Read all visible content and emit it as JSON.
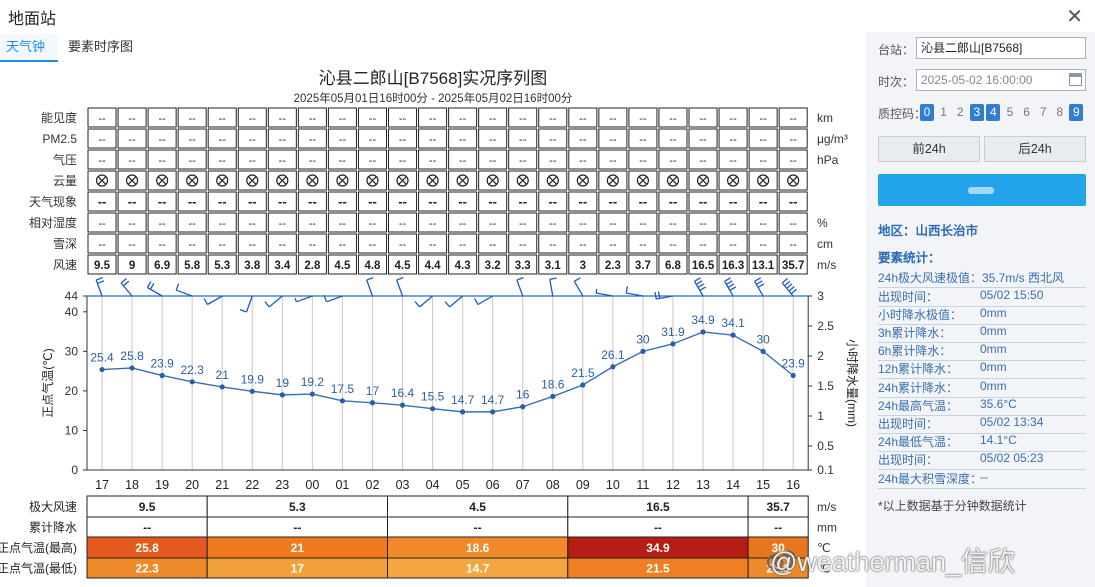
{
  "window": {
    "title": "地面站"
  },
  "tabs": [
    {
      "label": "天气钟"
    },
    {
      "label": "要素时序图"
    }
  ],
  "panel": {
    "station_label": "台站：",
    "station_value": "沁县二郎山[B7568]",
    "time_label": "时次：",
    "time_value": "2025-05-02 16:00:00",
    "qc_label": "质控码：",
    "qc_codes": [
      {
        "code": "0",
        "on": true
      },
      {
        "code": "1",
        "on": false
      },
      {
        "code": "2",
        "on": false
      },
      {
        "code": "3",
        "on": true
      },
      {
        "code": "4",
        "on": true
      },
      {
        "code": "5",
        "on": false
      },
      {
        "code": "6",
        "on": false
      },
      {
        "code": "7",
        "on": false
      },
      {
        "code": "8",
        "on": false
      },
      {
        "code": "9",
        "on": true
      }
    ],
    "prev_label": "前24h",
    "next_label": "后24h",
    "region": "地区：山西长治市",
    "stats_title": "要素统计：",
    "stats": [
      {
        "k": "24h极大风速极值：",
        "v": "35.7m/s 西北风",
        "wide": true
      },
      {
        "k": "出现时间：",
        "v": "05/02 15:50"
      },
      {
        "k": "小时降水极值：",
        "v": "0mm"
      },
      {
        "k": "3h累计降水：",
        "v": "0mm"
      },
      {
        "k": "6h累计降水：",
        "v": "0mm"
      },
      {
        "k": "12h累计降水：",
        "v": "0mm"
      },
      {
        "k": "24h累计降水：",
        "v": "0mm"
      },
      {
        "k": "24h最高气温：",
        "v": "35.6°C"
      },
      {
        "k": "出现时间：",
        "v": "05/02 13:34"
      },
      {
        "k": "24h最低气温：",
        "v": "14.1°C"
      },
      {
        "k": "出现时间：",
        "v": "05/02 05:23"
      },
      {
        "k": "24h最大积雪深度：",
        "v": "--"
      }
    ],
    "footnote": "*以上数据基于分钟数据统计"
  },
  "watermark": "@weatherman_信欣",
  "chart_data": {
    "type": "line",
    "title": "沁县二郎山[B7568]实况序列图",
    "subtitle": "2025年05月01日16时00分 - 2025年05月02日16时00分",
    "hours": [
      "17",
      "18",
      "19",
      "20",
      "21",
      "22",
      "23",
      "00",
      "01",
      "02",
      "03",
      "04",
      "05",
      "06",
      "07",
      "08",
      "09",
      "10",
      "11",
      "12",
      "13",
      "14",
      "15",
      "16"
    ],
    "ylabel": "正点气温(℃)",
    "y2label": "小时降水量(mm)",
    "ylim": [
      0,
      44
    ],
    "yticks": [
      "0",
      "10",
      "20",
      "30",
      "40",
      "44"
    ],
    "y2ticks": [
      "0.1",
      "0.5",
      "1",
      "1.5",
      "2",
      "2.5",
      "3"
    ],
    "temperature": [
      25.4,
      25.8,
      23.9,
      22.3,
      21,
      19.9,
      19,
      19.2,
      17.5,
      17,
      16.4,
      15.5,
      14.7,
      14.7,
      16,
      18.6,
      21.5,
      26.1,
      30,
      31.9,
      34.9,
      34.1,
      30,
      23.9
    ],
    "series": [
      {
        "values": [
          25.4,
          25.8,
          23.9,
          22.3,
          21,
          19.9,
          19,
          19.2,
          17.5,
          17,
          16.4,
          15.5,
          14.7,
          14.7,
          16,
          18.6,
          21.5,
          26.1,
          30,
          31.9,
          34.9,
          34.1,
          30,
          23.9
        ]
      }
    ],
    "table_rows": [
      {
        "label": "能见度",
        "unit": "km",
        "kind": "dash"
      },
      {
        "label": "PM2.5",
        "unit": "μg/m³",
        "kind": "dash"
      },
      {
        "label": "气压",
        "unit": "hPa",
        "kind": "dash"
      },
      {
        "label": "云量",
        "unit": "",
        "kind": "cloud"
      },
      {
        "label": "天气现象",
        "unit": "",
        "kind": "dash-bold"
      },
      {
        "label": "相对湿度",
        "unit": "%",
        "kind": "dash"
      },
      {
        "label": "雪深",
        "unit": "cm",
        "kind": "dash"
      },
      {
        "label": "风速",
        "unit": "m/s",
        "kind": "wind"
      }
    ],
    "dash_text": "--",
    "wind_speed": [
      "9.5",
      "9",
      "6.9",
      "5.8",
      "5.3",
      "3.8",
      "3.4",
      "2.8",
      "4.5",
      "4.8",
      "4.5",
      "4.4",
      "4.3",
      "3.2",
      "3.3",
      "3.1",
      "3",
      "2.3",
      "3.7",
      "6.8",
      "16.5",
      "16.3",
      "13.1",
      "35.7"
    ],
    "wind_dir_deg": [
      340,
      320,
      300,
      290,
      240,
      200,
      230,
      250,
      250,
      340,
      340,
      230,
      230,
      240,
      340,
      350,
      330,
      280,
      280,
      260,
      330,
      330,
      330,
      320
    ],
    "bottom_rows": [
      {
        "label": "极大风速",
        "unit": "m/s",
        "values": [
          "9.5",
          "5.3",
          "4.5",
          "16.5",
          "35.7"
        ]
      },
      {
        "label": "累计降水",
        "unit": "mm",
        "values": [
          "--",
          "--",
          "--",
          "--",
          "--"
        ]
      },
      {
        "label": "正点气温(最高)",
        "unit": "℃",
        "values": [
          "25.8",
          "21",
          "18.6",
          "34.9",
          "30"
        ]
      },
      {
        "label": "正点气温(最低)",
        "unit": "℃",
        "values": [
          "22.3",
          "17",
          "14.7",
          "21.5",
          "23.9"
        ]
      }
    ],
    "grid": true
  }
}
